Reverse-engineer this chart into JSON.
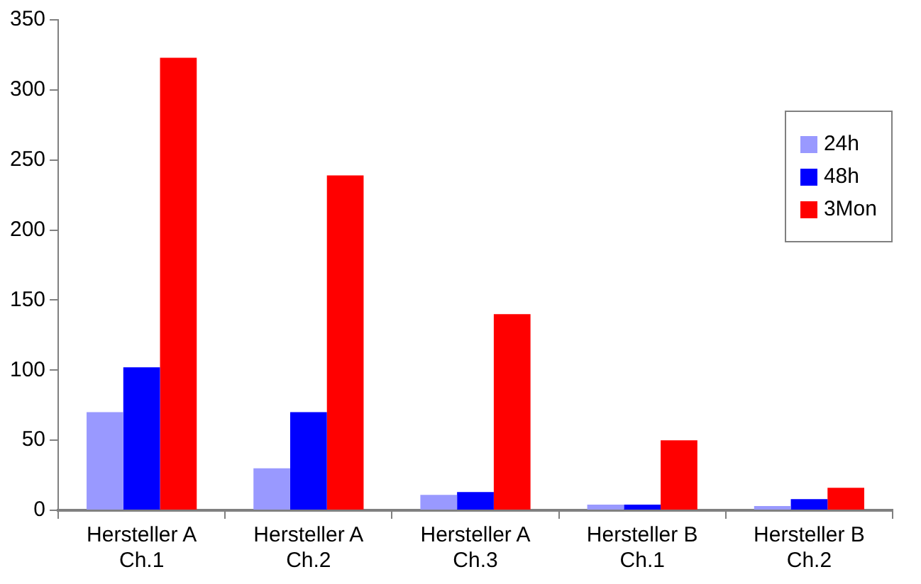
{
  "chart_data": {
    "type": "bar",
    "categories": [
      "Hersteller A Ch.1",
      "Hersteller A Ch.2",
      "Hersteller A Ch.3",
      "Hersteller B Ch.1",
      "Hersteller B Ch.2"
    ],
    "series": [
      {
        "name": "24h",
        "color": "#9999ff",
        "values": [
          70,
          30,
          11,
          4,
          3
        ]
      },
      {
        "name": "48h",
        "color": "#0000ff",
        "values": [
          102,
          70,
          13,
          4,
          8
        ]
      },
      {
        "name": "3Mon",
        "color": "#ff0000",
        "values": [
          323,
          239,
          140,
          50,
          16
        ]
      }
    ],
    "ylim": [
      0,
      350
    ],
    "yticks": [
      0,
      50,
      100,
      150,
      200,
      250,
      300,
      350
    ],
    "grid": false,
    "legend": "right"
  }
}
